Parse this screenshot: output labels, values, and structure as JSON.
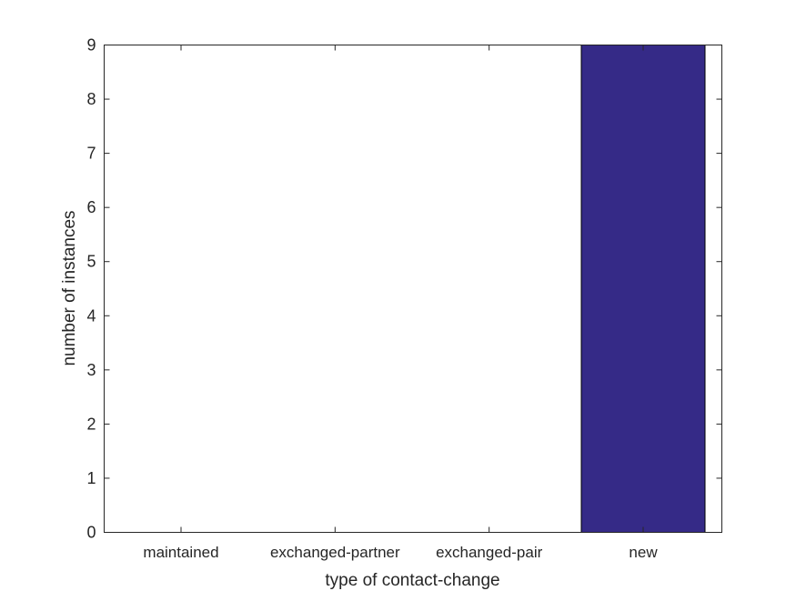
{
  "chart_data": {
    "type": "bar",
    "categories": [
      "maintained",
      "exchanged-partner",
      "exchanged-pair",
      "new"
    ],
    "values": [
      0,
      0,
      0,
      9
    ],
    "xlabel": "type of contact-change",
    "ylabel": "number of instances",
    "ylim": [
      0,
      9
    ],
    "yticks": [
      0,
      1,
      2,
      3,
      4,
      5,
      6,
      7,
      8,
      9
    ],
    "grid": false,
    "bar_color": "#352a87"
  }
}
